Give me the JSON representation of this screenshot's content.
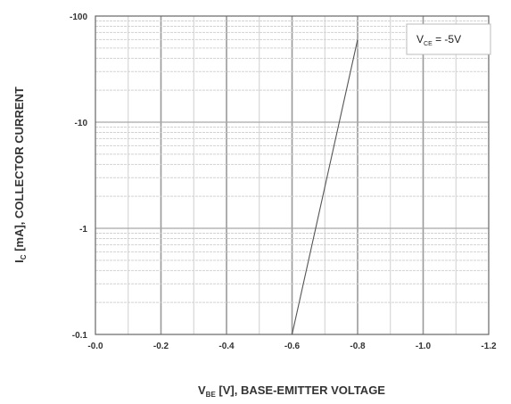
{
  "chart_data": {
    "type": "line",
    "title": "",
    "xlabel": {
      "prefix": "V",
      "sub": "BE",
      "suffix": " [V], BASE-EMITTER VOLTAGE"
    },
    "ylabel": {
      "prefix": "I",
      "sub": "C",
      "suffix": " [mA], COLLECTOR CURRENT"
    },
    "xlim": [
      0.0,
      -1.2
    ],
    "ylim": [
      -0.1,
      -100
    ],
    "yscale": "log",
    "grid": true,
    "x_ticks": [
      "-0.0",
      "-0.2",
      "-0.4",
      "-0.6",
      "-0.8",
      "-1.0",
      "-1.2"
    ],
    "y_ticks": [
      "-0.1",
      "-1",
      "-10",
      "-100"
    ],
    "legend": {
      "position": "top-right",
      "text": {
        "prefix": "V",
        "sub": "CE",
        "suffix": " = -5V"
      }
    },
    "series": [
      {
        "color": "#555555",
        "x": [
          -0.6,
          -0.8
        ],
        "y": [
          -0.1,
          -60
        ]
      }
    ]
  }
}
